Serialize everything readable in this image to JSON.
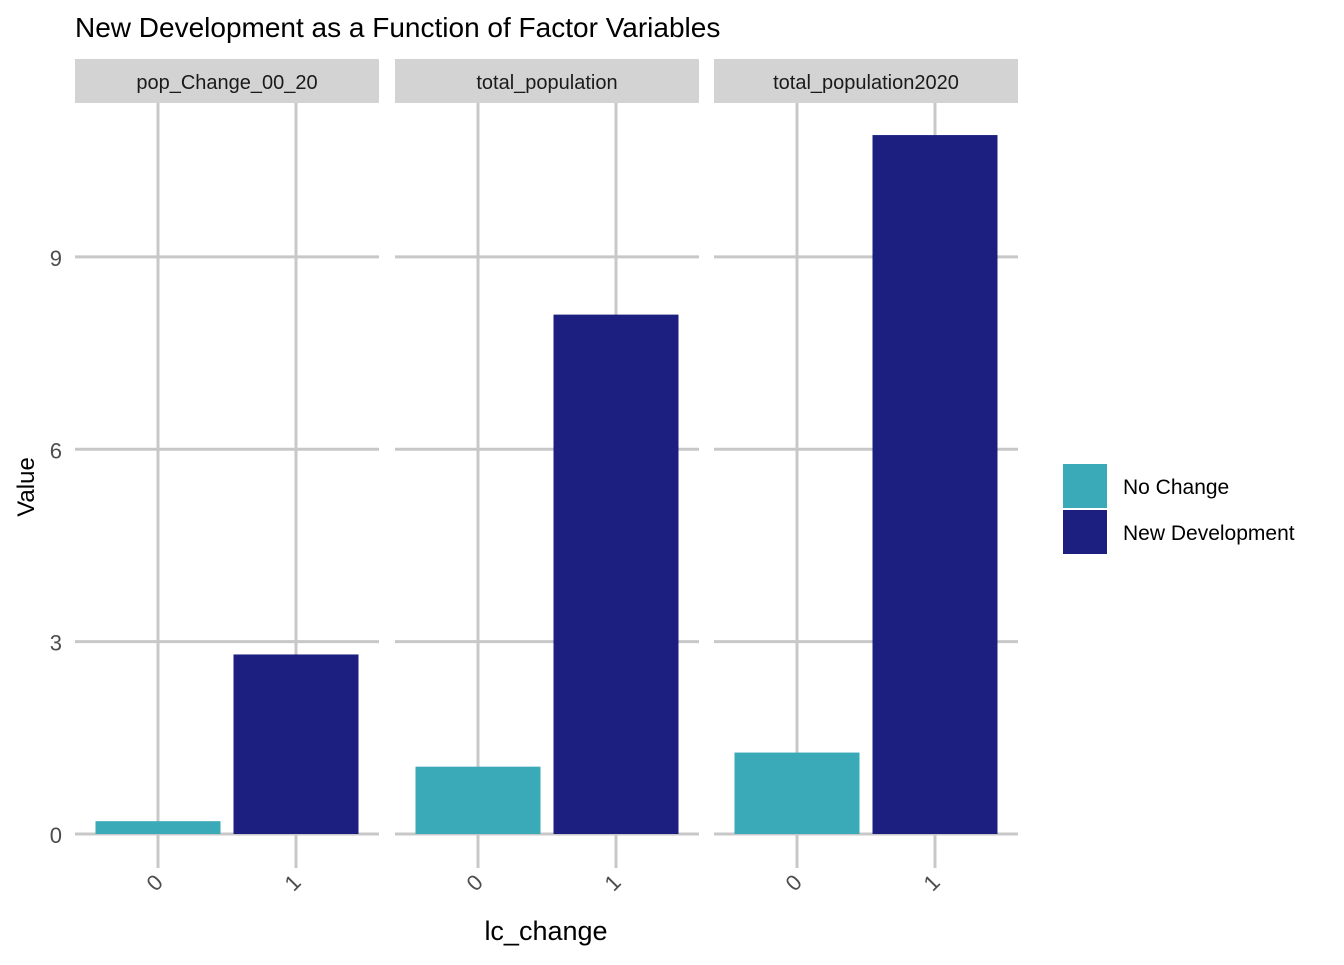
{
  "chart_data": {
    "type": "bar",
    "title": "New Development as a Function of Factor Variables",
    "xlabel": "lc_change",
    "ylabel": "Value",
    "ylim": [
      0,
      11.4
    ],
    "yticks": [
      0,
      3,
      6,
      9
    ],
    "categories": [
      "0",
      "1"
    ],
    "facets": [
      {
        "label": "pop_Change_00_20",
        "values": [
          0.2,
          2.8
        ]
      },
      {
        "label": "total_population",
        "values": [
          1.05,
          8.1
        ]
      },
      {
        "label": "total_population2020",
        "values": [
          1.27,
          10.9
        ]
      }
    ],
    "series": [
      {
        "name": "No Change",
        "color": "#3aa9b8"
      },
      {
        "name": "New Development",
        "color": "#1c1f80"
      }
    ],
    "grid": true,
    "legend_position": "right",
    "colors": {
      "grid": "#c8c8c8",
      "strip_bg": "#d3d3d3",
      "axis_text": "#4d4d4d",
      "text": "#000000"
    }
  }
}
